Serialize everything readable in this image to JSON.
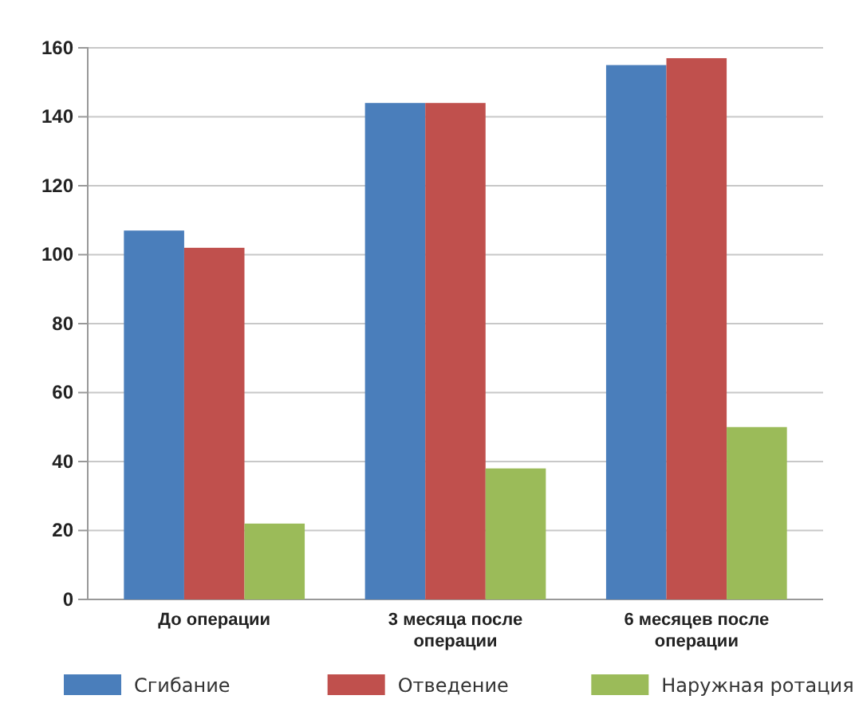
{
  "chart_data": {
    "type": "bar",
    "categories": [
      "До операции",
      "3 месяца после операции",
      "6 месяцев после операции"
    ],
    "series": [
      {
        "name": "Сгибание",
        "color": "#4a7ebb",
        "values": [
          107,
          144,
          155
        ]
      },
      {
        "name": "Отведение",
        "color": "#c0504d",
        "values": [
          102,
          144,
          157
        ]
      },
      {
        "name": "Наружная ротация",
        "color": "#9bbb59",
        "values": [
          22,
          38,
          50
        ]
      }
    ],
    "ylim": [
      0,
      160
    ],
    "yticks": [
      0,
      20,
      40,
      60,
      80,
      100,
      120,
      140,
      160
    ],
    "grid": "y",
    "legend": "bottom"
  }
}
